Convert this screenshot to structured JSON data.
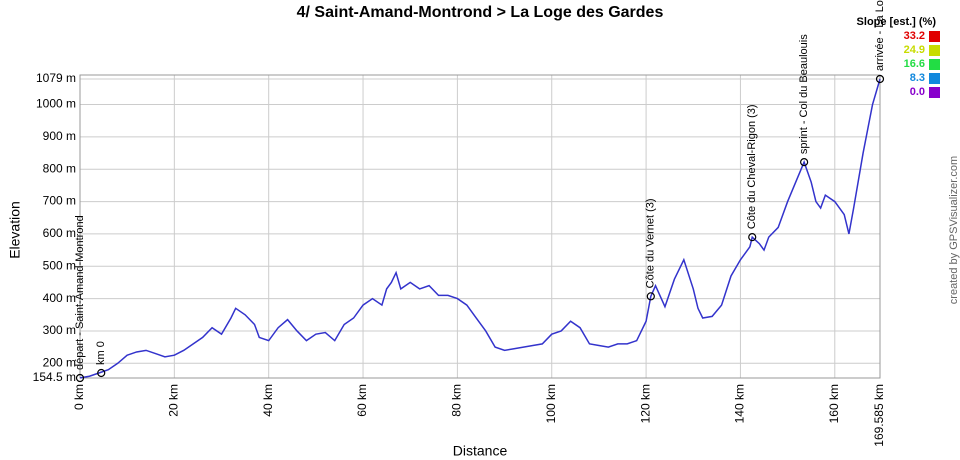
{
  "chart_data": {
    "type": "line",
    "title": "4/ Saint-Amand-Montrond > La Loge des Gardes",
    "x_label": "Distance",
    "y_label": "Elevation",
    "credit": "created by GPSVisualizer.com",
    "x": [
      0,
      2,
      4,
      6,
      8,
      10,
      12,
      14,
      16,
      18,
      20,
      22,
      24,
      26,
      28,
      30,
      32,
      33,
      35,
      37,
      38,
      40,
      42,
      44,
      46,
      48,
      50,
      52,
      54,
      56,
      58,
      60,
      62,
      64,
      65,
      66,
      67,
      68,
      70,
      72,
      74,
      76,
      78,
      80,
      82,
      84,
      86,
      88,
      90,
      92,
      94,
      96,
      98,
      100,
      102,
      104,
      106,
      108,
      110,
      112,
      114,
      116,
      118,
      120,
      121,
      122,
      124,
      126,
      128,
      130,
      131,
      132,
      134,
      136,
      138,
      140,
      142,
      142.5,
      144,
      145,
      146,
      148,
      150,
      152,
      153.5,
      155,
      156,
      157,
      158,
      160,
      162,
      163,
      164,
      166,
      168,
      169.585
    ],
    "series": [
      {
        "name": "Elevation",
        "color": "#3333cc",
        "values": [
          155,
          160,
          170,
          180,
          200,
          225,
          235,
          240,
          230,
          220,
          225,
          240,
          260,
          280,
          310,
          290,
          340,
          370,
          350,
          320,
          280,
          270,
          310,
          335,
          300,
          270,
          290,
          295,
          270,
          320,
          340,
          380,
          400,
          380,
          430,
          450,
          480,
          430,
          450,
          430,
          440,
          410,
          410,
          400,
          380,
          340,
          300,
          250,
          240,
          245,
          250,
          255,
          260,
          290,
          300,
          330,
          310,
          260,
          255,
          250,
          260,
          260,
          270,
          330,
          407,
          440,
          375,
          460,
          520,
          430,
          370,
          340,
          345,
          380,
          470,
          520,
          560,
          590,
          570,
          550,
          590,
          620,
          700,
          770,
          822,
          760,
          700,
          680,
          720,
          700,
          660,
          600,
          680,
          850,
          1000,
          1079
        ]
      }
    ],
    "xlim": [
      0,
      169.585
    ],
    "ylim": [
      154.5,
      1079
    ],
    "xticks": [
      {
        "value": 0,
        "label": "0 km"
      },
      {
        "value": 20,
        "label": "20 km"
      },
      {
        "value": 40,
        "label": "40 km"
      },
      {
        "value": 60,
        "label": "60 km"
      },
      {
        "value": 80,
        "label": "80 km"
      },
      {
        "value": 100,
        "label": "100 km"
      },
      {
        "value": 120,
        "label": "120 km"
      },
      {
        "value": 140,
        "label": "140 km"
      },
      {
        "value": 160,
        "label": "160 km"
      },
      {
        "value": 169.585,
        "label": "169.585 km"
      }
    ],
    "yticks": [
      {
        "value": 154.5,
        "label": "154.5 m"
      },
      {
        "value": 200,
        "label": "200 m"
      },
      {
        "value": 300,
        "label": "300 m"
      },
      {
        "value": 400,
        "label": "400 m"
      },
      {
        "value": 500,
        "label": "500 m"
      },
      {
        "value": 600,
        "label": "600 m"
      },
      {
        "value": 700,
        "label": "700 m"
      },
      {
        "value": 800,
        "label": "800 m"
      },
      {
        "value": 900,
        "label": "900 m"
      },
      {
        "value": 1000,
        "label": "1000 m"
      },
      {
        "value": 1079,
        "label": "1079 m"
      }
    ],
    "grid": true,
    "annotations": [
      {
        "x": 0,
        "y": 154.5,
        "label": "départ - Saint-Amand-Montrond"
      },
      {
        "x": 4.5,
        "y": 170,
        "label": "km 0"
      },
      {
        "x": 121,
        "y": 407,
        "label": "Côte du Vernet (3)"
      },
      {
        "x": 142.5,
        "y": 590,
        "label": "Côte du Cheval-Rigon (3)"
      },
      {
        "x": 153.5,
        "y": 822,
        "label": "sprint - Col du Beaulouis"
      },
      {
        "x": 169.585,
        "y": 1079,
        "label": "arrivée - La Loge des Gardes"
      }
    ],
    "legend": {
      "title": "Slope [est.] (%)",
      "items": [
        {
          "value": 33.2,
          "color": "#e00000"
        },
        {
          "value": 24.9,
          "color": "#c8dc00"
        },
        {
          "value": 16.6,
          "color": "#22dd44"
        },
        {
          "value": 8.3,
          "color": "#1188dd"
        },
        {
          "value": 0,
          "label": "0.0",
          "color": "#8800cc"
        }
      ]
    }
  }
}
